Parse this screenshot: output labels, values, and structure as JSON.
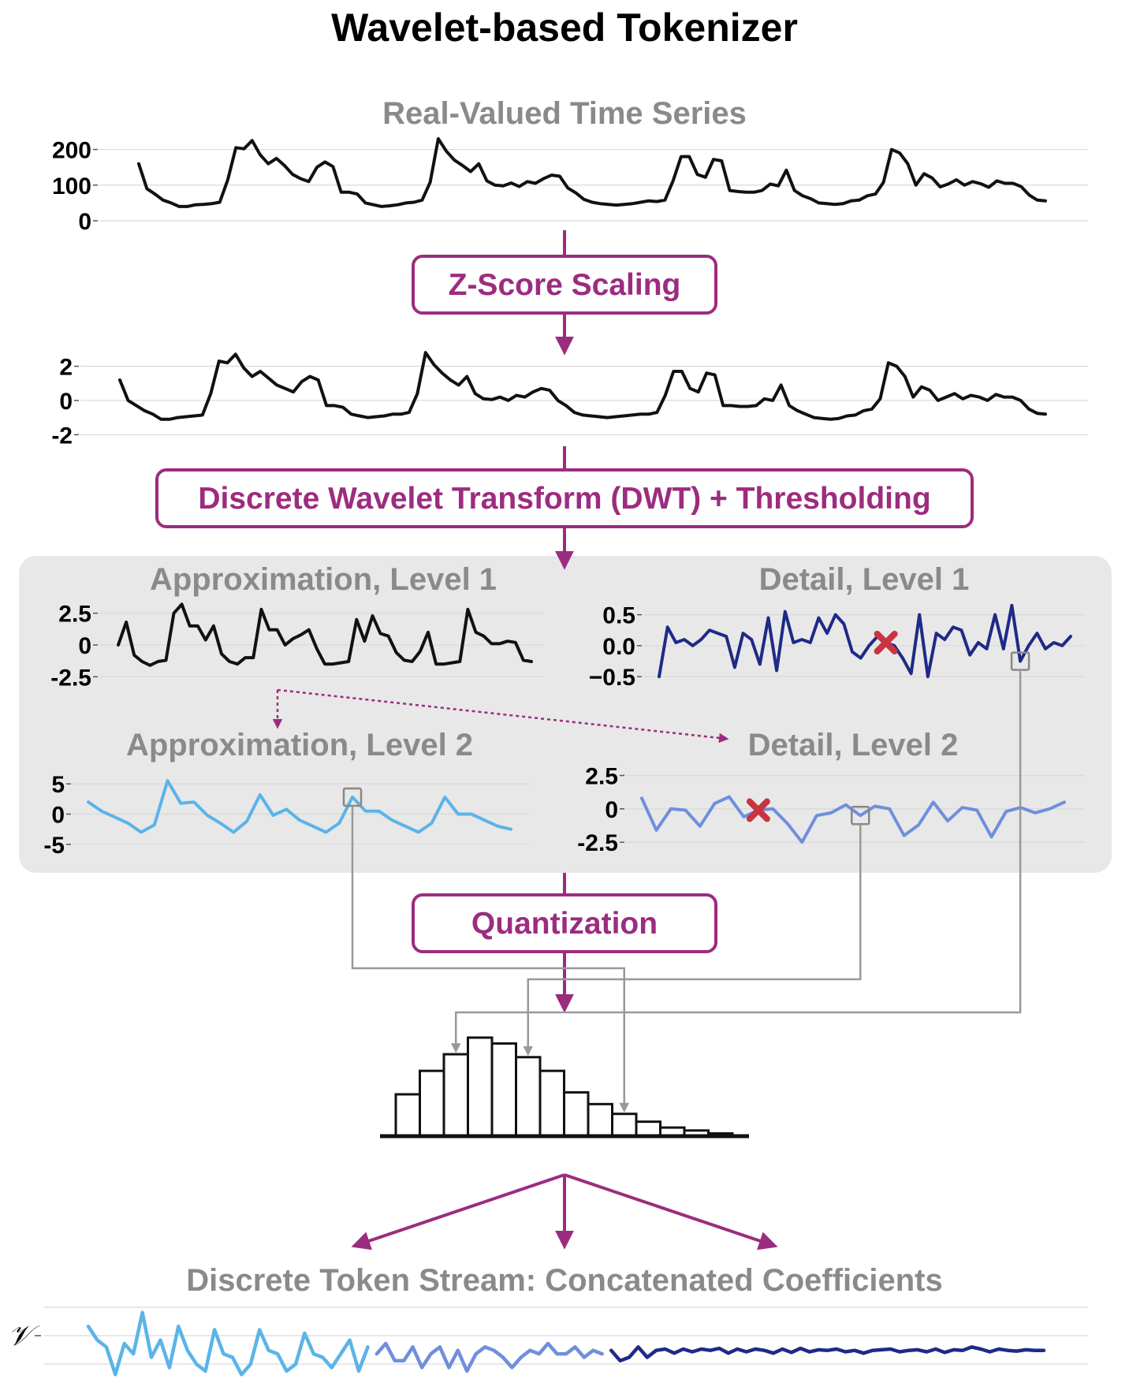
{
  "title": "Wavelet-based Tokenizer",
  "sections": {
    "input": "Real-Valued Time Series",
    "approx1": "Approximation, Level 1",
    "detail1": "Detail, Level 1",
    "approx2": "Approximation, Level 2",
    "detail2": "Detail, Level 2",
    "output": "Discrete Token Stream: Concatenated Coefficients"
  },
  "steps": {
    "zscore": "Z-Score Scaling",
    "dwt": "Discrete Wavelet Transform (DWT) + Thresholding",
    "quant": "Quantization"
  },
  "token_axis_label": "𝒱",
  "colors": {
    "accent": "#9c2c7f",
    "raw_series": "#111111",
    "approx2_series": "#5ab4e8",
    "detail2_series": "#6f8fdc",
    "detail1_series": "#1e2a87",
    "thresholded_marker": "#c8343f",
    "panel_bg": "#e8e8e8",
    "connector": "#999999"
  },
  "chart_data": [
    {
      "type": "line",
      "ylim": [
        0,
        230
      ],
      "y_ticks": [
        0,
        100,
        200
      ],
      "y_tick_labels": [
        "0",
        "100",
        "200"
      ],
      "grid": true,
      "values": [
        160,
        90,
        75,
        58,
        50,
        40,
        40,
        45,
        46,
        48,
        52,
        115,
        205,
        202,
        225,
        185,
        160,
        175,
        155,
        130,
        118,
        110,
        150,
        165,
        152,
        80,
        80,
        75,
        50,
        45,
        40,
        42,
        45,
        50,
        52,
        58,
        108,
        230,
        195,
        170,
        155,
        138,
        160,
        112,
        100,
        98,
        106,
        96,
        110,
        105,
        118,
        128,
        125,
        92,
        78,
        60,
        52,
        48,
        46,
        44,
        46,
        48,
        52,
        56,
        54,
        58,
        112,
        180,
        180,
        130,
        122,
        172,
        168,
        85,
        82,
        80,
        80,
        85,
        103,
        98,
        142,
        85,
        70,
        62,
        50,
        48,
        46,
        48,
        56,
        58,
        70,
        75,
        108,
        200,
        190,
        160,
        100,
        132,
        120,
        95,
        103,
        115,
        100,
        110,
        104,
        94,
        112,
        105,
        105,
        96,
        72,
        58,
        56
      ]
    },
    {
      "type": "line",
      "ylim": [
        -2.4,
        2.9
      ],
      "y_ticks": [
        -2,
        0,
        2
      ],
      "y_tick_labels": [
        "-2",
        "0",
        "2"
      ],
      "grid": true,
      "values": [
        1.2,
        0,
        -0.3,
        -0.6,
        -0.8,
        -1.1,
        -1.1,
        -1,
        -0.95,
        -0.9,
        -0.85,
        0.4,
        2.3,
        2.2,
        2.7,
        1.9,
        1.4,
        1.7,
        1.3,
        0.9,
        0.7,
        0.5,
        1.1,
        1.4,
        1.2,
        -0.3,
        -0.3,
        -0.4,
        -0.8,
        -0.9,
        -1,
        -0.95,
        -0.9,
        -0.8,
        -0.8,
        -0.7,
        0.4,
        2.8,
        2.1,
        1.6,
        1.2,
        0.9,
        1.4,
        0.4,
        0.1,
        0.05,
        0.2,
        0,
        0.3,
        0.2,
        0.5,
        0.7,
        0.6,
        0,
        -0.3,
        -0.7,
        -0.85,
        -0.9,
        -0.95,
        -1,
        -0.95,
        -0.9,
        -0.85,
        -0.8,
        -0.8,
        -0.7,
        0.3,
        1.7,
        1.7,
        0.7,
        0.5,
        1.6,
        1.5,
        -0.3,
        -0.3,
        -0.35,
        -0.35,
        -0.3,
        0.1,
        0,
        0.9,
        -0.3,
        -0.6,
        -0.8,
        -1,
        -1.05,
        -1.1,
        -1.05,
        -0.9,
        -0.85,
        -0.6,
        -0.5,
        0.1,
        2.2,
        2,
        1.4,
        0.2,
        0.8,
        0.6,
        0,
        0.2,
        0.4,
        0.1,
        0.3,
        0.2,
        0,
        0.35,
        0.2,
        0.2,
        0,
        -0.5,
        -0.75,
        -0.8
      ]
    },
    {
      "type": "line",
      "ylim": [
        -3.1,
        3.6
      ],
      "y_ticks": [
        -2.5,
        0,
        2.5
      ],
      "y_tick_labels": [
        "-2.5",
        "0",
        "2.5"
      ],
      "grid": true,
      "values": [
        0,
        1.8,
        -0.8,
        -1.3,
        -1.6,
        -1.3,
        -1.2,
        2.5,
        3.2,
        1.5,
        1.5,
        0.4,
        1.5,
        -0.7,
        -1.3,
        -1.5,
        -1,
        -1,
        2.8,
        1.2,
        1.2,
        0,
        0.5,
        0.8,
        1.2,
        -0.3,
        -1.5,
        -1.5,
        -1.4,
        -1.3,
        2,
        0.3,
        2.3,
        0.9,
        0.7,
        -0.6,
        -1.2,
        -1.3,
        -0.5,
        1,
        -1.5,
        -1.5,
        -1.4,
        -1.3,
        2.8,
        1,
        0.7,
        0.1,
        0.1,
        0.3,
        0.2,
        -1.2,
        -1.3
      ]
    },
    {
      "type": "line",
      "ylim": [
        -0.65,
        0.75
      ],
      "y_ticks": [
        -0.5,
        0,
        0.5
      ],
      "y_tick_labels": [
        "−0.5",
        "0.0",
        "0.5"
      ],
      "grid": true,
      "values": [
        -0.5,
        0.3,
        0.05,
        0.1,
        0,
        0.1,
        0.25,
        0.2,
        0.15,
        -0.35,
        0.2,
        0.1,
        -0.3,
        0.45,
        -0.4,
        0.55,
        0.05,
        0.1,
        0.05,
        0.45,
        0.2,
        0.5,
        0.35,
        -0.1,
        -0.2,
        0,
        0.15,
        0.05,
        0,
        -0.2,
        -0.45,
        0.5,
        -0.5,
        0.2,
        0.1,
        0.3,
        0.25,
        -0.15,
        0.05,
        -0.05,
        0.5,
        -0.05,
        0.65,
        -0.25,
        0,
        0.2,
        -0.05,
        0.05,
        0,
        0.15
      ],
      "thresholded_index": 27,
      "highlight_index": 43
    },
    {
      "type": "line",
      "ylim": [
        -7.5,
        7.5
      ],
      "y_ticks": [
        -5,
        0,
        5
      ],
      "y_tick_labels": [
        "-5",
        "0",
        "5"
      ],
      "grid": true,
      "values": [
        2,
        0.5,
        -0.5,
        -1.5,
        -3,
        -1.8,
        5.5,
        1.8,
        2,
        -0.2,
        -1.5,
        -3,
        -1.2,
        3.2,
        -0.2,
        0.8,
        -1,
        -2,
        -3,
        -1.5,
        2.8,
        0.5,
        0.5,
        -1,
        -2,
        -3,
        -1.5,
        2.8,
        0,
        0,
        -1,
        -2,
        -2.5
      ],
      "highlight_index": 20
    },
    {
      "type": "line",
      "ylim": [
        -3.2,
        3.3
      ],
      "y_ticks": [
        -2.5,
        0,
        2.5
      ],
      "y_tick_labels": [
        "-2.5",
        "0",
        "2.5"
      ],
      "grid": true,
      "values": [
        0.8,
        -1.6,
        0,
        -0.1,
        -1.3,
        0.4,
        0.9,
        -0.6,
        -0.1,
        0,
        -1.1,
        -2.5,
        -0.5,
        -0.3,
        0.3,
        -0.5,
        0.2,
        0,
        -2,
        -1.2,
        0.5,
        -0.9,
        0.1,
        -0.1,
        -2.1,
        -0.2,
        0.1,
        -0.3,
        0,
        0.5
      ],
      "thresholded_index": 8,
      "highlight_index": 15
    },
    {
      "type": "bar",
      "values": [
        42,
        66,
        83,
        100,
        94,
        80,
        66,
        44,
        32,
        22,
        14,
        8,
        5,
        2
      ],
      "ylim": [
        0,
        100
      ]
    },
    {
      "type": "line",
      "segments": [
        "approx2",
        "detail2",
        "detail1"
      ],
      "ylim": [
        -0.05,
        1.05
      ],
      "values": [
        0.75,
        0.55,
        0.45,
        0.05,
        0.5,
        0.35,
        0.95,
        0.3,
        0.55,
        0.15,
        0.75,
        0.4,
        0.2,
        0.1,
        0.7,
        0.35,
        0.3,
        0.05,
        0.2,
        0.7,
        0.4,
        0.35,
        0.1,
        0.2,
        0.65,
        0.35,
        0.3,
        0.15,
        0.35,
        0.55,
        0.1,
        0.45,
        0.35,
        0.5,
        0.25,
        0.25,
        0.45,
        0.15,
        0.35,
        0.45,
        0.15,
        0.4,
        0.1,
        0.35,
        0.45,
        0.4,
        0.3,
        0.15,
        0.3,
        0.4,
        0.35,
        0.5,
        0.35,
        0.35,
        0.45,
        0.3,
        0.4,
        0.35,
        0.4,
        0.25,
        0.3,
        0.45,
        0.3,
        0.4,
        0.42,
        0.36,
        0.42,
        0.38,
        0.42,
        0.4,
        0.43,
        0.36,
        0.42,
        0.38,
        0.42,
        0.4,
        0.36,
        0.42,
        0.37,
        0.43,
        0.38,
        0.41,
        0.4,
        0.42,
        0.38,
        0.4,
        0.36,
        0.4,
        0.41,
        0.42,
        0.38,
        0.4,
        0.41,
        0.38,
        0.42,
        0.37,
        0.41,
        0.4,
        0.45,
        0.42,
        0.38,
        0.42,
        0.4,
        0.39,
        0.41,
        0.4,
        0.4
      ],
      "segment_breaks": [
        32,
        58
      ],
      "y_tick_labels": [
        "𝒱"
      ]
    }
  ]
}
